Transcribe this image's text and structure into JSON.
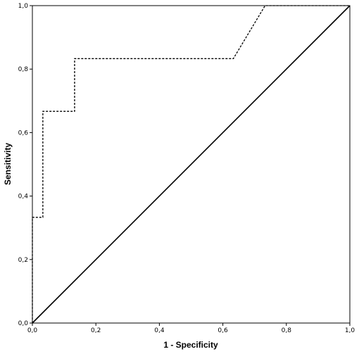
{
  "chart_data": {
    "type": "line",
    "title": "",
    "xlabel": "1 - Specificity",
    "ylabel": "Sensitivity",
    "xlim": [
      0,
      1
    ],
    "ylim": [
      0,
      1
    ],
    "x_ticks": [
      0.0,
      0.2,
      0.4,
      0.6,
      0.8,
      1.0
    ],
    "y_ticks": [
      0.0,
      0.2,
      0.4,
      0.6,
      0.8,
      1.0
    ],
    "x_tick_labels": [
      "0,0",
      "0,2",
      "0,4",
      "0,6",
      "0,8",
      "1,0"
    ],
    "y_tick_labels": [
      "0,0",
      "0,2",
      "0,4",
      "0,6",
      "0,8",
      "1,0"
    ],
    "grid": false,
    "legend": "none",
    "series": [
      {
        "style": "dotted",
        "color": "#000000",
        "x": [
          0.0,
          0.0,
          0.033,
          0.033,
          0.133,
          0.133,
          0.633,
          0.733,
          1.0
        ],
        "y": [
          0.0,
          0.333,
          0.333,
          0.667,
          0.667,
          0.833,
          0.833,
          1.0,
          1.0
        ]
      },
      {
        "style": "solid",
        "color": "#000000",
        "x": [
          0.0,
          1.0
        ],
        "y": [
          0.0,
          1.0
        ]
      }
    ]
  }
}
